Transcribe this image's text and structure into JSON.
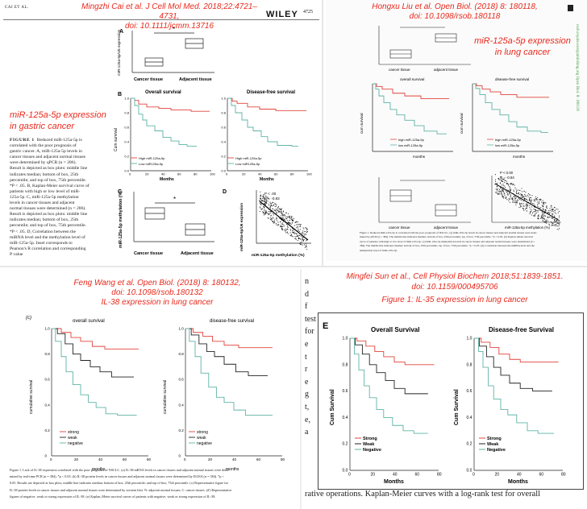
{
  "colors": {
    "citation_red": "#e8291c",
    "curve_red": "#e0443a",
    "curve_teal": "#5fb3a6",
    "curve_black": "#222222",
    "box_fill": "#ffffff"
  },
  "q1": {
    "header_left": "CAI ET AL.",
    "header_journal": "WILEY",
    "page_number": "4725",
    "citation_line1": "Mingzhi Cai et al. J Cell Mol Med. 2018;22:4721–4731,",
    "citation_line2": "doi: 10.1111/jcmm.13716",
    "title_line1": "miR-125a-5p expression",
    "title_line2": "in gastric cancer",
    "caption_label": "FIGURE 1",
    "caption_lines": [
      "Reduced miR-125a-5p is",
      "correlated with the poor prognosis of",
      "gastric cancer. A, miR-125a-5p levels in",
      "cancer tissues and adjacent normal tissues",
      "were determined by qPCR (n = 286).",
      "Result is depicted as box plots: middle line",
      "indicates median; bottom of box, 25th",
      "percentile; and top of box, 75th percentile.",
      "*P < .05. B, Kaplan-Meier survival curve of",
      "patients with high or low level of miR-",
      "125a-5p. C, miR-125a-5p methylation",
      "levels in cancer tissues and adjacent",
      "normal tissues were determined (n = 286).",
      "Result is depicted as box plots: middle line",
      "indicates median; bottom of box, 25th",
      "percentile; and top of box, 75th percentile.",
      "*P < .05. D, Correlation between the",
      "miRNA level and the methylation level of",
      "miR-125a-5p. Inset corresponds to",
      "Pearson's R correlation and corresponding",
      "P value"
    ],
    "panelA": {
      "letter": "A",
      "ylabel": "miR-125a-5p/U6 expression",
      "cat1": "Cancer tissue",
      "cat2": "Adjacent tissue",
      "sig": "*"
    },
    "panelB": {
      "letter": "B",
      "os_title": "Overall survival",
      "dfs_title": "Disease-free survival",
      "ylabel": "Cum survival",
      "xlabel": "Months",
      "legend_high": "High miR-125a-5p",
      "legend_low": "Low miR125a-5p",
      "ticks_x": [
        "0",
        "20",
        "40",
        "60",
        "80",
        "100"
      ],
      "ticks_y": [
        "0.0",
        "0.2",
        "0.4",
        "0.6",
        "0.8",
        "1.0"
      ]
    },
    "panelC": {
      "letter": "C",
      "ylabel": "miR-125a-5p methylation (%)",
      "cat1": "Cancer tissue",
      "cat2": "Adjacent tissue",
      "sig": "*"
    },
    "panelD": {
      "letter": "D",
      "ylabel": "miR-125a-5p/U6 expression",
      "xlabel": "miR-125a-5p methylation (%)",
      "p_text": "P < .00",
      "r_text": "R = -0.83"
    }
  },
  "q2": {
    "citation_line1": "Hongxu Liu et al. Open Biol. (2018) 8: 180118,",
    "citation_line2": "doi: 10.1098/rsob.180118",
    "title_line1": "miR-125a-5p expression",
    "title_line2": "in lung cancer",
    "side_text": "rsob.royalsocietypublishing.org  Open Biol. 8: 180118",
    "os_title": "overall survival",
    "dfs_title": "disease-free survival",
    "legend_high": "high miR-125a-5p",
    "legend_low": "low miR-125a-5p",
    "xlabel": "months",
    "ylabel": "cum survival",
    "cat1": "cancer tissue",
    "cat2": "adjacent tissue",
    "p_text": "P < 0.00",
    "r_text": "R = -0.84",
    "scatter_xlabel": "miR-125a-5p methylation (%)",
    "caption_lines": [
      "Figure 1. Reduced miR-125a-5p is correlated with the poor prognosis of NSCLC. (a) miR-125a-5p levels in cancer tissues and adjacent normal tissues were deter-",
      "mined by qPCR (n = 384). The middle line indicates median; bottom of box, 25th percentile; top of box, 75th percentile. *p < 0.05. (b) Kaplan–Meier survival",
      "curve of patients with high or low level of miR-125a-5p. (c) miR-125a-5p methylation levels in cancer tissues and adjacent normal tissues were determined (n =",
      "384). The middle line indicates median; bottom of box, 25th percentile; top of box, 75th percentile. *p < 0.05. (d) Correlation between the miRNA level and the",
      "methylation level of miR-125a-5p."
    ]
  },
  "q3": {
    "citation_line1": "Feng Wang et al. Open Biol. (2018) 8: 180132,",
    "citation_line2": "doi: 10.1098/rsob.180132",
    "title": "IL-38 expression in lung cancer",
    "panel_letter": "(c)",
    "os_title": "overall survival",
    "dfs_title": "disease-free survival",
    "ylabel": "cumulative survival",
    "xlabel": "months",
    "legend": [
      "strong",
      "weak",
      "negative"
    ],
    "ticks_x": [
      "0",
      "20",
      "40",
      "60",
      "80"
    ],
    "ticks_y": [
      "0",
      "0.2",
      "0.4",
      "0.6",
      "0.8",
      "1.0"
    ],
    "caption_lines": [
      "Figure 1. Lack of IL-38 expression correlated with the poor prognosis of NSCLC. (a) IL-38 mRNA levels in cancer tissues and adjacent normal tissues were deter-",
      "mined by real-time PCR (n = 384). *p < 0.05. (b) IL-38 protein levels in cancer tissues and adjacent normal tissues were determined by ELISA (n = 384). *p <",
      "0.05. Results are depicted as box plots; middle line indicates median; bottom of box, 25th percentile; and top of box, 75th percentile. (c) Representative figure for",
      "IL-38 protein levels in cancer tissues and adjacent normal tissues were determined by western blot. N: adjacent normal tissues; C: cancer tissues. (d') Representative",
      "figures of negative, weak or strong expression of IL-38. (e) Kaplan–Meier survival curves of patients with negative, weak or strong expression of IL-38."
    ]
  },
  "q4": {
    "citation_line1": "Mingfei Sun et al., Cell Physiol Biochem 2018;51:1839-1851.",
    "citation_line2": "doi: 10.1159/000495706",
    "title": "Figure 1: IL-35 expression in lung cancer",
    "panel_letter": "E",
    "os_title": "Overall Survival",
    "dfs_title": "Disease-free Survival",
    "ylabel": "Cum Survival",
    "xlabel": "Months",
    "legend": [
      "Strong",
      "Weak",
      "Negative"
    ],
    "ticks_x": [
      "0",
      "20",
      "40",
      "60",
      "80"
    ],
    "ticks_y": [
      "0.0",
      "0.2",
      "0.4",
      "0.6",
      "0.8",
      "1.0"
    ],
    "left_letters": [
      "n",
      "d",
      "f",
      "test",
      "for",
      "e",
      "t",
      "r",
      "e",
      "g",
      "t,",
      "e,",
      "a"
    ],
    "bottom_text": "rative operations. Kaplan-Meier curves with a log-rank test for overall"
  }
}
